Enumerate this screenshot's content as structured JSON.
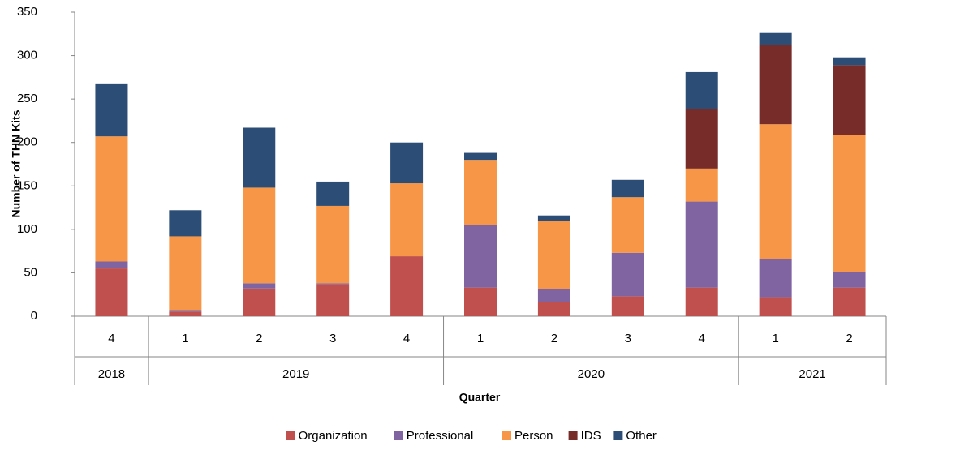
{
  "chart_data": {
    "type": "stacked_bar",
    "x_label": "Quarter",
    "y_label": "Number of THN Kits",
    "categories": [
      "4",
      "1",
      "2",
      "3",
      "4",
      "1",
      "2",
      "3",
      "4",
      "1",
      "2"
    ],
    "groups": [
      {
        "name": "2018",
        "size": 1
      },
      {
        "name": "2019",
        "size": 4
      },
      {
        "name": "2020",
        "size": 4
      },
      {
        "name": "2021",
        "size": 2
      }
    ],
    "series": [
      {
        "name": "Organization",
        "color": "#c0504d",
        "values": [
          55,
          5,
          32,
          37,
          69,
          33,
          16,
          23,
          33,
          22,
          33
        ]
      },
      {
        "name": "Professional",
        "color": "#8064a2",
        "values": [
          8,
          2,
          6,
          1,
          0,
          72,
          15,
          50,
          99,
          44,
          18
        ]
      },
      {
        "name": "Person",
        "color": "#f79646",
        "values": [
          144,
          85,
          110,
          89,
          84,
          75,
          79,
          64,
          38,
          155,
          158
        ]
      },
      {
        "name": "IDS",
        "color": "#772c2a",
        "values": [
          0,
          0,
          0,
          0,
          0,
          0,
          0,
          0,
          68,
          91,
          80
        ]
      },
      {
        "name": "Other",
        "color": "#2c4d75",
        "values": [
          61,
          30,
          69,
          28,
          47,
          8,
          6,
          20,
          43,
          14,
          9
        ]
      }
    ],
    "ylim": [
      0,
      350
    ],
    "yticks": [
      0,
      50,
      100,
      150,
      200,
      250,
      300,
      350
    ],
    "grid": false,
    "legend": "bottom"
  }
}
